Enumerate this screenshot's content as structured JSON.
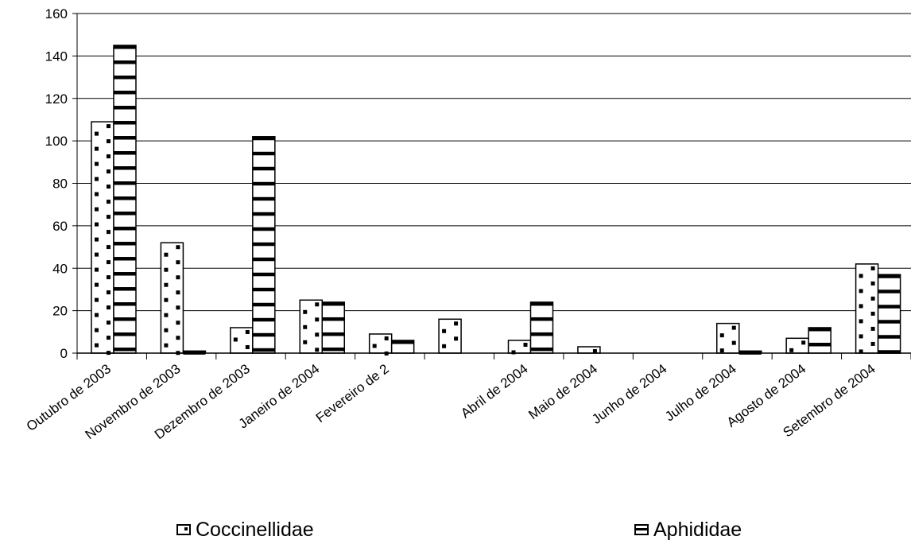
{
  "chart_data": {
    "type": "bar",
    "title": "",
    "xlabel": "",
    "ylabel": "",
    "ylim": [
      0,
      160
    ],
    "yticks": [
      0,
      20,
      40,
      60,
      80,
      100,
      120,
      140,
      160
    ],
    "grid": true,
    "legend_position": "bottom",
    "categories": [
      "Outubro de 2003",
      "Novembro de 2003",
      "Dezembro de 2003",
      "Janeiro de 2004",
      "Fevereiro de 2",
      "",
      "Abril de 2004",
      "Maio de 2004",
      "Junho de 2004",
      "Julho de 2004",
      "Agosto de 2004",
      "Setembro de 2004"
    ],
    "series": [
      {
        "name": "Coccinellidae",
        "values": [
          109,
          52,
          12,
          25,
          9,
          16,
          6,
          3,
          0,
          14,
          7,
          42
        ],
        "pattern": "dots"
      },
      {
        "name": "Aphididae",
        "values": [
          145,
          1,
          102,
          24,
          6,
          0,
          24,
          0,
          0,
          1,
          12,
          37
        ],
        "pattern": "bands"
      }
    ]
  },
  "colors": {
    "bar_fill": "#ffffff",
    "stroke": "#000000",
    "grid": "#000000"
  }
}
